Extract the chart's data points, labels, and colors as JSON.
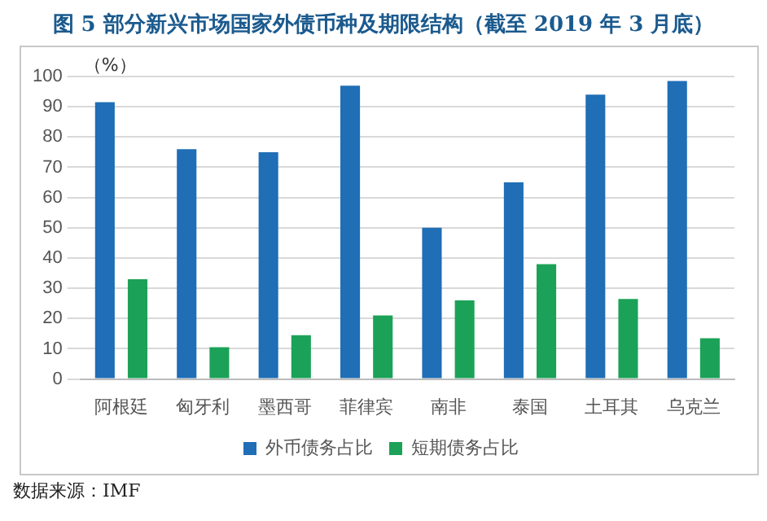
{
  "chart_data": {
    "type": "bar",
    "title": "图 5 部分新兴市场国家外债币种及期限结构（截至 2019 年 3 月底）",
    "ylabel": "（%）",
    "categories": [
      "阿根廷",
      "匈牙利",
      "墨西哥",
      "菲律宾",
      "南非",
      "泰国",
      "土耳其",
      "乌克兰"
    ],
    "series": [
      {
        "name": "外币债务占比",
        "color": "#1f6eb6",
        "values": [
          91.5,
          76,
          75,
          97,
          50,
          65,
          94,
          98.5
        ]
      },
      {
        "name": "短期债务占比",
        "color": "#1ba258",
        "values": [
          33,
          10.5,
          14.5,
          21,
          26,
          38,
          26.5,
          13.5
        ]
      }
    ],
    "ylim": [
      0,
      100
    ],
    "yticks": [
      0,
      10,
      20,
      30,
      40,
      50,
      60,
      70,
      80,
      90,
      100
    ],
    "grid": "y",
    "legend": "bottom",
    "annotations": [
      "数据来源：IMF"
    ]
  }
}
